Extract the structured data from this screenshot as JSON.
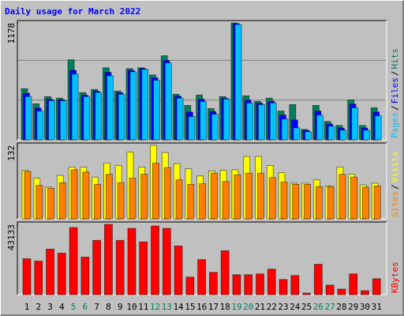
{
  "chart_data": [
    {
      "type": "bar",
      "title": "Daily usage for March 2022",
      "categories": [
        "1",
        "2",
        "3",
        "4",
        "5",
        "6",
        "7",
        "8",
        "9",
        "10",
        "11",
        "12",
        "13",
        "14",
        "15",
        "16",
        "17",
        "18",
        "19",
        "20",
        "21",
        "22",
        "23",
        "24",
        "25",
        "26",
        "27",
        "28",
        "29",
        "30",
        "31"
      ],
      "ylim": [
        0,
        1178
      ],
      "yticks": [
        1178
      ],
      "legend_separator": "/",
      "series": [
        {
          "name": "Hits",
          "color": "#00805c",
          "values": [
            516,
            363,
            436,
            420,
            807,
            476,
            508,
            726,
            492,
            718,
            726,
            654,
            847,
            460,
            347,
            452,
            315,
            436,
            1178,
            444,
            387,
            420,
            290,
            355,
            105,
            347,
            186,
            145,
            403,
            145,
            323
          ]
        },
        {
          "name": "Files",
          "color": "#0000ff",
          "values": [
            470,
            320,
            410,
            405,
            700,
            450,
            490,
            680,
            475,
            700,
            718,
            625,
            800,
            440,
            280,
            410,
            285,
            420,
            1170,
            400,
            370,
            390,
            250,
            200,
            95,
            290,
            160,
            120,
            360,
            120,
            280
          ]
        },
        {
          "name": "Pages",
          "color": "#00c0ff",
          "values": [
            436,
            290,
            395,
            395,
            662,
            436,
            476,
            646,
            460,
            686,
            710,
            600,
            775,
            420,
            234,
            387,
            258,
            412,
            1162,
            371,
            355,
            371,
            210,
            121,
            81,
            250,
            137,
            97,
            323,
            97,
            242
          ]
        }
      ]
    },
    {
      "type": "bar",
      "categories": [
        "1",
        "2",
        "3",
        "4",
        "5",
        "6",
        "7",
        "8",
        "9",
        "10",
        "11",
        "12",
        "13",
        "14",
        "15",
        "16",
        "17",
        "18",
        "19",
        "20",
        "21",
        "22",
        "23",
        "24",
        "25",
        "26",
        "27",
        "28",
        "29",
        "30",
        "31"
      ],
      "ylim": [
        0,
        132
      ],
      "yticks": [
        132
      ],
      "legend_separator": "/",
      "series": [
        {
          "name": "Visits",
          "color": "#ffff00",
          "values": [
            87,
            73,
            57,
            78,
            93,
            93,
            75,
            100,
            96,
            120,
            93,
            132,
            119,
            99,
            90,
            77,
            86,
            87,
            88,
            112,
            112,
            96,
            83,
            64,
            64,
            70,
            59,
            93,
            80,
            61,
            64
          ]
        },
        {
          "name": "Sites",
          "color": "#ff8000",
          "values": [
            85,
            60,
            55,
            65,
            88,
            84,
            62,
            80,
            65,
            73,
            80,
            100,
            92,
            70,
            62,
            63,
            82,
            67,
            79,
            82,
            82,
            74,
            66,
            62,
            62,
            58,
            58,
            80,
            75,
            57,
            59
          ]
        }
      ]
    },
    {
      "type": "bar",
      "categories": [
        "1",
        "2",
        "3",
        "4",
        "5",
        "6",
        "7",
        "8",
        "9",
        "10",
        "11",
        "12",
        "13",
        "14",
        "15",
        "16",
        "17",
        "18",
        "19",
        "20",
        "21",
        "22",
        "23",
        "24",
        "25",
        "26",
        "27",
        "28",
        "29",
        "30",
        "31"
      ],
      "category_colors": [
        "#000000",
        "#000000",
        "#000000",
        "#000000",
        "#00805c",
        "#00805c",
        "#000000",
        "#000000",
        "#000000",
        "#000000",
        "#000000",
        "#00805c",
        "#00805c",
        "#000000",
        "#000000",
        "#000000",
        "#000000",
        "#000000",
        "#00805c",
        "#00805c",
        "#000000",
        "#000000",
        "#000000",
        "#000000",
        "#000000",
        "#00805c",
        "#00805c",
        "#000000",
        "#000000",
        "#000000",
        "#000000"
      ],
      "ylim": [
        0,
        43133
      ],
      "yticks": [
        43133
      ],
      "series": [
        {
          "name": "KBytes",
          "color": "#ff0000",
          "values": [
            22056,
            20590,
            27940,
            25490,
            41170,
            23040,
            33330,
            43133,
            33330,
            40680,
            32350,
            42150,
            40680,
            29900,
            10780,
            21570,
            13720,
            26960,
            12250,
            12250,
            12740,
            15680,
            9310,
            11760,
            980,
            18620,
            5880,
            3430,
            12740,
            2450,
            9800
          ]
        }
      ]
    }
  ]
}
